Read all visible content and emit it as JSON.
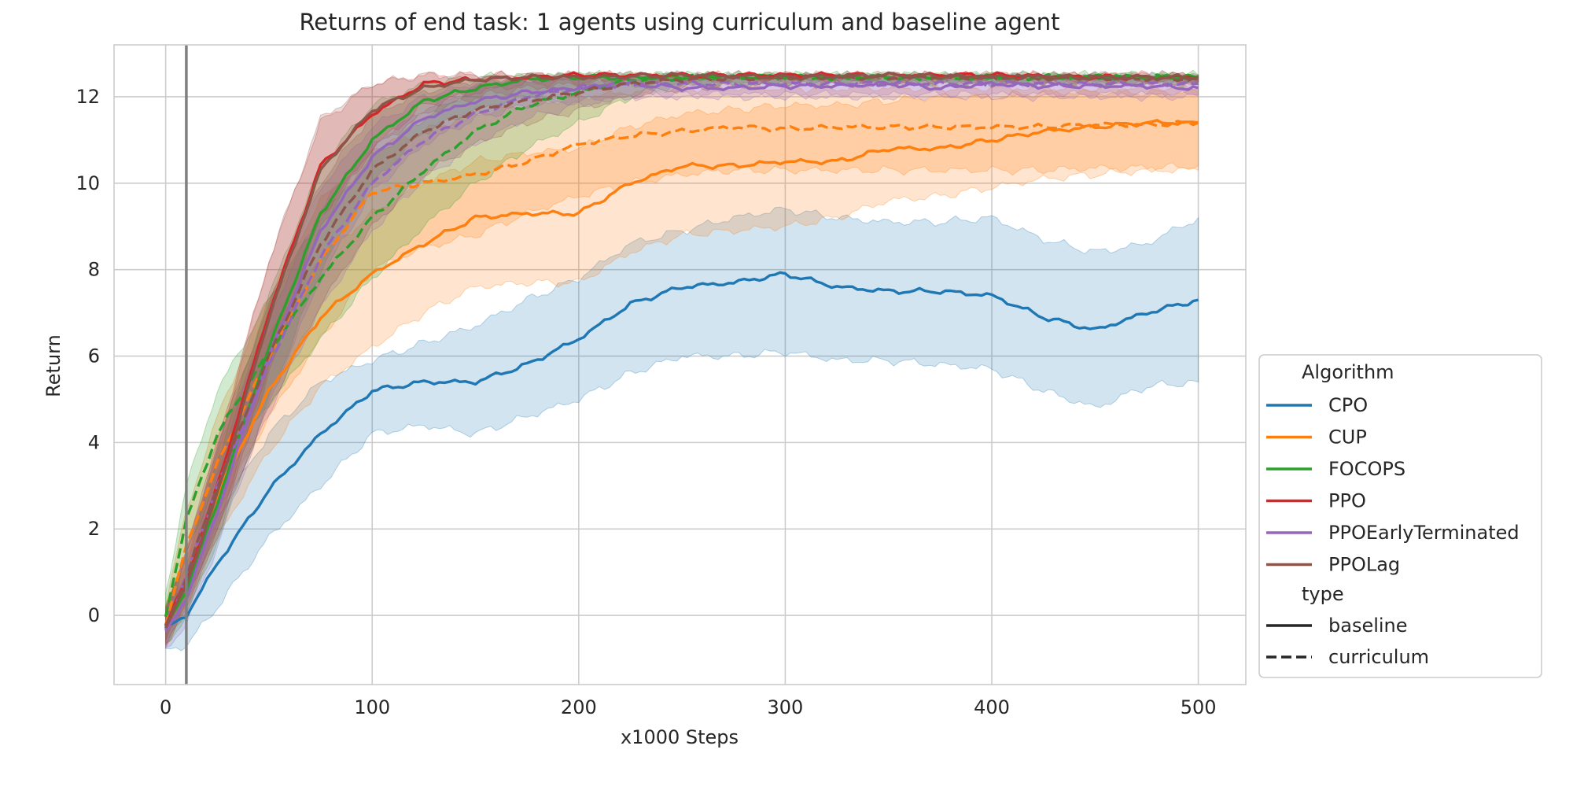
{
  "chart_data": {
    "type": "line",
    "title": "Returns of end task: 1 agents using curriculum and baseline agent",
    "xlabel": "x1000 Steps",
    "ylabel": "Return",
    "xlim": [
      -25,
      523
    ],
    "ylim": [
      -1.6,
      13.2
    ],
    "xticks": [
      0,
      100,
      200,
      300,
      400,
      500
    ],
    "yticks": [
      0,
      2,
      4,
      6,
      8,
      10,
      12
    ],
    "vertical_marker_x": 10,
    "grid": true,
    "legend": {
      "placement": "right-outside, bottom",
      "algorithm_title": "Algorithm",
      "type_title": "type",
      "types": [
        {
          "label": "baseline",
          "dash": "solid"
        },
        {
          "label": "curriculum",
          "dash": "dashed"
        }
      ]
    },
    "series": [
      {
        "name": "CPO",
        "type": "baseline",
        "color": "#1f77b4",
        "x": [
          0,
          10,
          25,
          50,
          75,
          100,
          125,
          150,
          175,
          200,
          225,
          250,
          275,
          300,
          325,
          350,
          375,
          400,
          425,
          450,
          475,
          500
        ],
        "y": [
          -0.3,
          0.0,
          1.2,
          2.9,
          4.2,
          5.2,
          5.4,
          5.4,
          5.8,
          6.4,
          7.2,
          7.6,
          7.7,
          7.9,
          7.6,
          7.5,
          7.5,
          7.4,
          6.9,
          6.6,
          7.0,
          7.3
        ],
        "lower": [
          -0.8,
          -0.7,
          0.2,
          1.8,
          3.0,
          4.2,
          4.4,
          4.2,
          4.6,
          5.0,
          5.6,
          6.0,
          6.0,
          6.1,
          5.9,
          5.9,
          5.8,
          5.7,
          5.2,
          4.8,
          5.3,
          5.4
        ],
        "upper": [
          0.2,
          0.7,
          2.3,
          4.2,
          5.4,
          5.9,
          6.3,
          6.7,
          7.3,
          7.8,
          8.6,
          8.9,
          9.2,
          9.4,
          9.2,
          9.1,
          9.1,
          9.2,
          8.7,
          8.4,
          8.6,
          9.2
        ]
      },
      {
        "name": "CUP",
        "type": "baseline",
        "color": "#ff7f0e",
        "x": [
          0,
          10,
          25,
          50,
          75,
          100,
          125,
          150,
          175,
          200,
          225,
          250,
          275,
          300,
          325,
          350,
          375,
          400,
          425,
          450,
          475,
          500
        ],
        "y": [
          -0.3,
          0.8,
          2.8,
          5.2,
          6.9,
          7.9,
          8.6,
          9.2,
          9.3,
          9.3,
          10.0,
          10.4,
          10.4,
          10.5,
          10.5,
          10.8,
          10.8,
          11.0,
          11.2,
          11.3,
          11.4,
          11.4
        ],
        "lower": [
          -0.7,
          0.2,
          1.8,
          3.8,
          5.3,
          6.2,
          7.0,
          7.6,
          7.7,
          7.7,
          8.4,
          8.8,
          8.9,
          9.0,
          9.2,
          9.6,
          9.7,
          9.9,
          10.1,
          10.2,
          10.3,
          10.3
        ],
        "upper": [
          0.2,
          1.5,
          3.8,
          6.5,
          8.3,
          9.3,
          10.0,
          10.5,
          10.7,
          10.8,
          11.3,
          11.6,
          11.7,
          11.8,
          11.8,
          11.9,
          12.0,
          12.0,
          12.1,
          12.1,
          12.1,
          12.1
        ]
      },
      {
        "name": "CUP",
        "type": "curriculum",
        "color": "#ff7f0e",
        "x": [
          0,
          10,
          25,
          50,
          75,
          100,
          125,
          150,
          175,
          200,
          225,
          250,
          275,
          300,
          325,
          350,
          375,
          400,
          425,
          450,
          475,
          500
        ],
        "y": [
          -0.2,
          1.6,
          3.5,
          6.0,
          8.2,
          9.8,
          10.0,
          10.2,
          10.5,
          10.9,
          11.1,
          11.2,
          11.3,
          11.25,
          11.3,
          11.3,
          11.3,
          11.3,
          11.3,
          11.35,
          11.35,
          11.4
        ],
        "lower": [
          -0.6,
          0.8,
          2.4,
          4.6,
          6.4,
          8.0,
          8.5,
          8.8,
          9.3,
          9.7,
          10.0,
          10.2,
          10.3,
          10.3,
          10.3,
          10.3,
          10.3,
          10.3,
          10.3,
          10.35,
          10.35,
          10.4
        ],
        "upper": [
          0.3,
          2.4,
          4.6,
          7.4,
          9.6,
          10.8,
          11.2,
          11.6,
          11.8,
          12.0,
          12.1,
          12.2,
          12.2,
          12.2,
          12.2,
          12.2,
          12.2,
          12.2,
          12.2,
          12.2,
          12.2,
          12.2
        ]
      },
      {
        "name": "FOCOPS",
        "type": "baseline",
        "color": "#2ca02c",
        "x": [
          0,
          10,
          25,
          50,
          75,
          100,
          125,
          150,
          175,
          200,
          250,
          300,
          350,
          400,
          450,
          500
        ],
        "y": [
          -0.3,
          0.6,
          2.6,
          6.2,
          9.3,
          11.0,
          11.9,
          12.2,
          12.4,
          12.45,
          12.45,
          12.45,
          12.45,
          12.45,
          12.45,
          12.45
        ],
        "lower": [
          -0.7,
          0.0,
          1.7,
          5.0,
          8.0,
          10.0,
          11.2,
          11.7,
          12.0,
          12.2,
          12.3,
          12.3,
          12.3,
          12.3,
          12.3,
          12.3
        ],
        "upper": [
          0.2,
          1.2,
          3.6,
          7.4,
          10.4,
          11.8,
          12.3,
          12.45,
          12.5,
          12.5,
          12.5,
          12.5,
          12.5,
          12.5,
          12.5,
          12.5
        ]
      },
      {
        "name": "FOCOPS",
        "type": "curriculum",
        "color": "#2ca02c",
        "x": [
          0,
          10,
          25,
          50,
          75,
          100,
          125,
          150,
          175,
          200,
          225,
          250,
          300,
          350,
          400,
          450,
          500
        ],
        "y": [
          0.0,
          2.2,
          4.2,
          6.1,
          7.8,
          9.2,
          10.3,
          11.2,
          11.8,
          12.1,
          12.4,
          12.45,
          12.45,
          12.45,
          12.45,
          12.45,
          12.45
        ],
        "lower": [
          -0.5,
          1.4,
          3.2,
          4.9,
          6.4,
          7.8,
          9.0,
          10.0,
          10.8,
          11.4,
          12.0,
          12.3,
          12.35,
          12.35,
          12.35,
          12.35,
          12.35
        ],
        "upper": [
          0.5,
          3.0,
          5.2,
          7.3,
          9.2,
          10.6,
          11.5,
          12.2,
          12.4,
          12.5,
          12.5,
          12.5,
          12.5,
          12.5,
          12.5,
          12.5,
          12.5
        ]
      },
      {
        "name": "PPO",
        "type": "baseline",
        "color": "#d62728",
        "x": [
          0,
          10,
          25,
          50,
          75,
          100,
          125,
          150,
          175,
          200,
          250,
          300,
          350,
          400,
          450,
          500
        ],
        "y": [
          -0.2,
          0.8,
          3.0,
          7.0,
          10.4,
          11.6,
          12.3,
          12.4,
          12.45,
          12.5,
          12.5,
          12.5,
          12.5,
          12.5,
          12.45,
          12.45
        ],
        "lower": [
          -0.6,
          0.2,
          2.0,
          5.8,
          9.2,
          10.8,
          11.8,
          12.1,
          12.3,
          12.35,
          12.4,
          12.4,
          12.4,
          12.4,
          12.35,
          12.35
        ],
        "upper": [
          0.2,
          1.4,
          4.0,
          8.2,
          11.4,
          12.3,
          12.5,
          12.5,
          12.5,
          12.5,
          12.5,
          12.5,
          12.5,
          12.5,
          12.5,
          12.5
        ]
      },
      {
        "name": "PPOEarlyTerminated",
        "type": "baseline",
        "color": "#9467bd",
        "x": [
          0,
          10,
          25,
          50,
          75,
          100,
          125,
          150,
          175,
          200,
          225,
          250,
          275,
          300,
          325,
          350,
          375,
          400,
          425,
          450,
          475,
          500
        ],
        "y": [
          -0.4,
          0.4,
          2.4,
          6.0,
          8.9,
          10.6,
          11.5,
          11.9,
          12.1,
          12.2,
          12.3,
          12.2,
          12.2,
          12.25,
          12.25,
          12.3,
          12.2,
          12.3,
          12.25,
          12.25,
          12.25,
          12.2
        ],
        "lower": [
          -0.8,
          -0.2,
          1.6,
          4.9,
          7.8,
          9.8,
          10.9,
          11.5,
          11.8,
          11.9,
          12.0,
          12.0,
          12.0,
          12.0,
          12.0,
          12.0,
          12.0,
          12.0,
          12.0,
          12.0,
          12.0,
          12.0
        ],
        "upper": [
          0.1,
          1.0,
          3.3,
          7.1,
          9.9,
          11.3,
          12.0,
          12.3,
          12.4,
          12.45,
          12.45,
          12.45,
          12.45,
          12.45,
          12.45,
          12.45,
          12.45,
          12.45,
          12.45,
          12.45,
          12.45,
          12.45
        ]
      },
      {
        "name": "PPOEarlyTerminated",
        "type": "curriculum",
        "color": "#9467bd",
        "x": [
          0,
          10,
          25,
          50,
          75,
          100,
          125,
          150,
          175,
          200,
          225,
          250,
          300,
          350,
          400,
          450,
          500
        ],
        "y": [
          -0.3,
          0.9,
          3.0,
          5.8,
          8.3,
          10.0,
          11.0,
          11.6,
          12.0,
          12.2,
          12.3,
          12.3,
          12.3,
          12.3,
          12.3,
          12.3,
          12.3
        ],
        "lower": [
          -0.7,
          0.3,
          2.1,
          4.7,
          7.1,
          8.9,
          10.1,
          10.9,
          11.5,
          11.8,
          12.0,
          12.05,
          12.05,
          12.05,
          12.05,
          12.05,
          12.05
        ],
        "upper": [
          0.1,
          1.5,
          3.9,
          6.9,
          9.4,
          10.9,
          11.7,
          12.2,
          12.4,
          12.45,
          12.45,
          12.45,
          12.45,
          12.45,
          12.45,
          12.45,
          12.45
        ]
      },
      {
        "name": "PPOLag",
        "type": "baseline",
        "color": "#8c564b",
        "x": [
          0,
          10,
          25,
          50,
          75,
          100,
          125,
          150,
          175,
          200,
          250,
          300,
          350,
          400,
          450,
          500
        ],
        "y": [
          -0.3,
          0.7,
          2.8,
          6.9,
          10.3,
          11.7,
          12.2,
          12.4,
          12.45,
          12.45,
          12.5,
          12.45,
          12.5,
          12.45,
          12.45,
          12.45
        ],
        "lower": [
          -0.7,
          0.1,
          1.8,
          5.6,
          9.0,
          10.8,
          11.6,
          12.0,
          12.2,
          12.3,
          12.35,
          12.35,
          12.35,
          12.35,
          12.35,
          12.35
        ],
        "upper": [
          0.1,
          1.3,
          3.8,
          8.2,
          11.5,
          12.3,
          12.5,
          12.5,
          12.5,
          12.5,
          12.5,
          12.5,
          12.5,
          12.5,
          12.5,
          12.5
        ]
      },
      {
        "name": "PPOLag",
        "type": "curriculum",
        "color": "#8c564b",
        "x": [
          0,
          10,
          25,
          50,
          75,
          100,
          125,
          150,
          175,
          200,
          225,
          250,
          300,
          350,
          400,
          450,
          500
        ],
        "y": [
          -0.3,
          0.9,
          3.0,
          6.0,
          8.6,
          10.3,
          11.2,
          11.7,
          11.9,
          12.1,
          12.3,
          12.4,
          12.45,
          12.45,
          12.45,
          12.45,
          12.4
        ],
        "lower": [
          -0.7,
          0.3,
          2.0,
          4.8,
          7.2,
          9.0,
          10.2,
          10.9,
          11.4,
          11.7,
          12.0,
          12.2,
          12.3,
          12.3,
          12.3,
          12.3,
          12.3
        ],
        "upper": [
          0.1,
          1.5,
          4.0,
          7.2,
          10.0,
          11.6,
          12.1,
          12.4,
          12.45,
          12.5,
          12.5,
          12.5,
          12.5,
          12.5,
          12.5,
          12.5,
          12.5
        ]
      }
    ]
  },
  "legend_items": [
    {
      "label": "CPO",
      "color": "#1f77b4"
    },
    {
      "label": "CUP",
      "color": "#ff7f0e"
    },
    {
      "label": "FOCOPS",
      "color": "#2ca02c"
    },
    {
      "label": "PPO",
      "color": "#d62728"
    },
    {
      "label": "PPOEarlyTerminated",
      "color": "#9467bd"
    },
    {
      "label": "PPOLag",
      "color": "#8c564b"
    }
  ],
  "colors": {
    "grid": "#cccccc",
    "frame": "#cccccc",
    "marker_line": "#808080",
    "text": "#262626"
  }
}
